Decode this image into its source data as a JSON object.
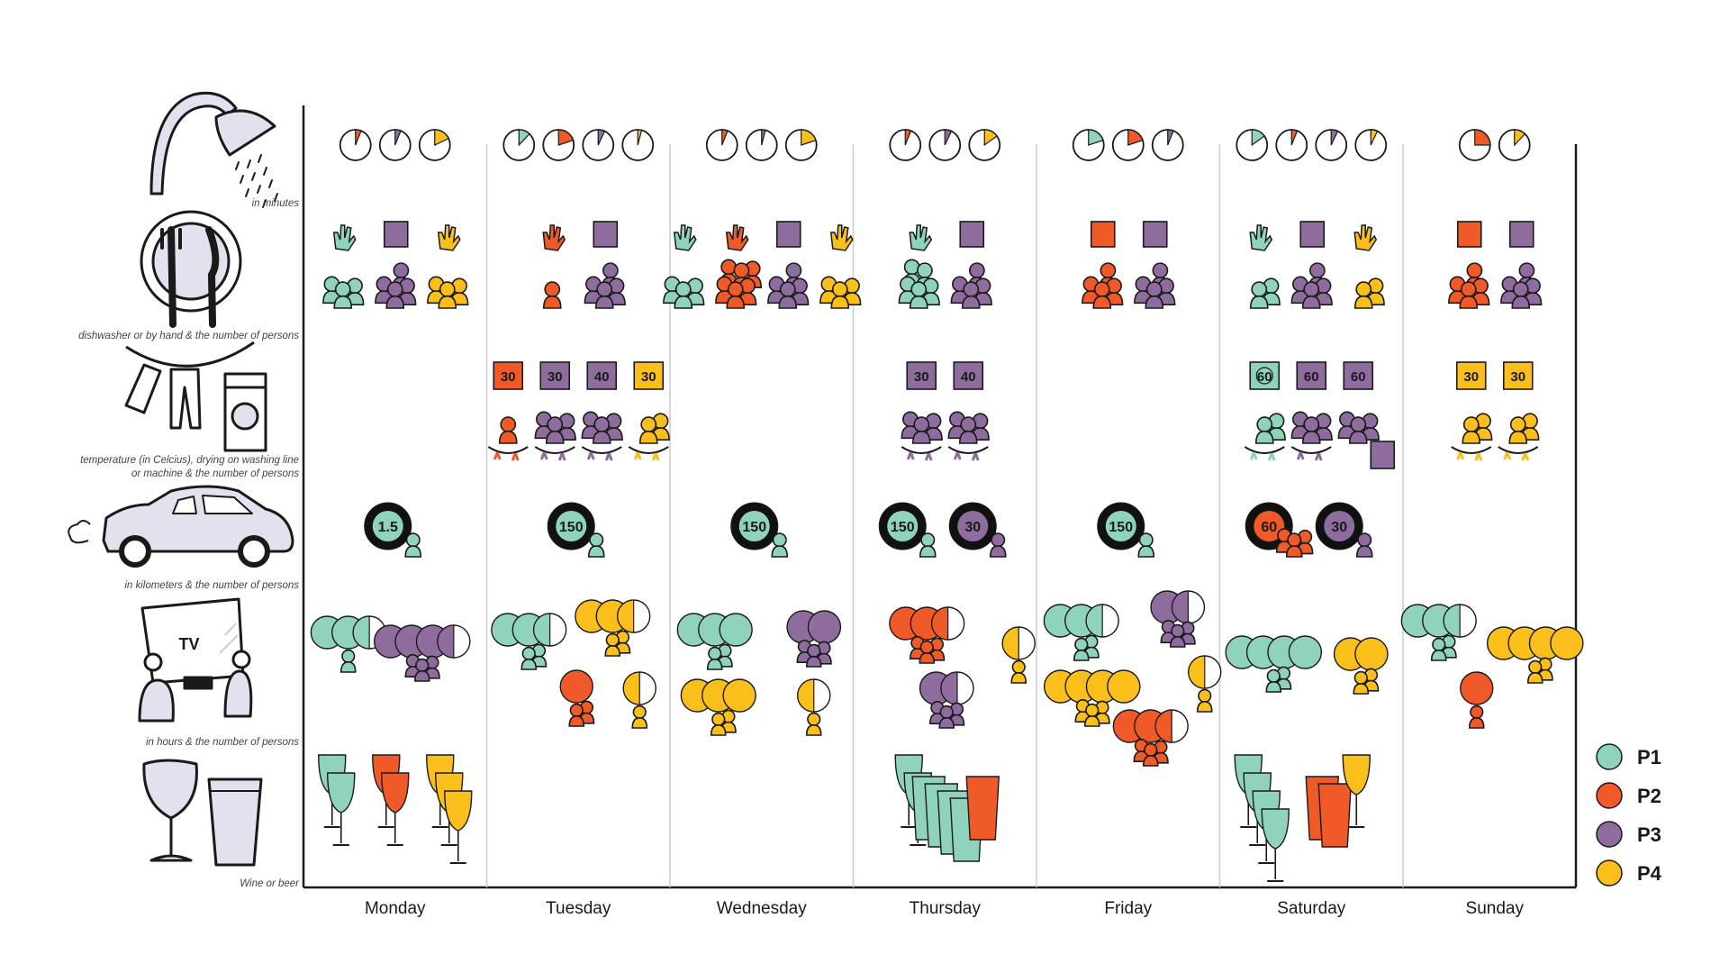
{
  "days": [
    "Monday",
    "Tuesday",
    "Wednesday",
    "Thursday",
    "Friday",
    "Saturday",
    "Sunday"
  ],
  "row_labels": {
    "shower": "in minutes",
    "dishes": "dishwasher or by hand & the number of persons",
    "laundry_1": "temperature (in Celcius), drying on washing line",
    "laundry_2": "or machine & the number of persons",
    "car": "in kilometers & the number of persons",
    "tv": "in hours & the number of persons",
    "drinks": "Wine or beer",
    "tv_screen": "TV"
  },
  "legend": [
    {
      "label": "P1",
      "color": "#8fd3bd"
    },
    {
      "label": "P2",
      "color": "#f05a28"
    },
    {
      "label": "P3",
      "color": "#8e6c9e"
    },
    {
      "label": "P4",
      "color": "#fbbf1c"
    }
  ],
  "colors": {
    "P1": "#8fd3bd",
    "P2": "#f05a28",
    "P3": "#8e6c9e",
    "P4": "#fbbf1c",
    "line": "#1a1a1a",
    "divider": "#cccccc"
  },
  "shower": [
    [
      {
        "p": "P2",
        "frac": 0.06
      },
      {
        "p": "P3",
        "frac": 0.06
      },
      {
        "p": "P4",
        "frac": 0.18
      }
    ],
    [
      {
        "p": "P1",
        "frac": 0.12
      },
      {
        "p": "P2",
        "frac": 0.2
      },
      {
        "p": "P3",
        "frac": 0.07
      },
      {
        "p": "P4",
        "frac": 0.04
      }
    ],
    [
      {
        "p": "P2",
        "frac": 0.06
      },
      {
        "p": "P3",
        "frac": 0.04
      },
      {
        "p": "P4",
        "frac": 0.2
      }
    ],
    [
      {
        "p": "P2",
        "frac": 0.06
      },
      {
        "p": "P3",
        "frac": 0.07
      },
      {
        "p": "P4",
        "frac": 0.15
      }
    ],
    [
      {
        "p": "P1",
        "frac": 0.2
      },
      {
        "p": "P2",
        "frac": 0.2
      },
      {
        "p": "P3",
        "frac": 0.06
      }
    ],
    [
      {
        "p": "P1",
        "frac": 0.15
      },
      {
        "p": "P2",
        "frac": 0.06
      },
      {
        "p": "P3",
        "frac": 0.07
      },
      {
        "p": "P4",
        "frac": 0.07
      }
    ],
    [
      {
        "p": "P2",
        "frac": 0.25
      },
      {
        "p": "P4",
        "frac": 0.12
      }
    ]
  ],
  "dishes": [
    [
      {
        "p": "P1",
        "method": "hand",
        "persons": 3
      },
      {
        "p": "P3",
        "method": "dishwasher",
        "persons": 4
      },
      {
        "p": "P4",
        "method": "hand",
        "persons": 3
      }
    ],
    [
      {
        "p": "P2",
        "method": "hand",
        "persons": 1
      },
      {
        "p": "P3",
        "method": "dishwasher",
        "persons": 4
      }
    ],
    [
      {
        "p": "P1",
        "method": "hand",
        "persons": 3
      },
      {
        "p": "P2",
        "method": "hand",
        "persons": 6
      },
      {
        "p": "P3",
        "method": "dishwasher",
        "persons": 4
      },
      {
        "p": "P4",
        "method": "hand",
        "persons": 3
      }
    ],
    [
      {
        "p": "P1",
        "method": "hand",
        "persons": 5
      },
      {
        "p": "P3",
        "method": "dishwasher",
        "persons": 4
      }
    ],
    [
      {
        "p": "P2",
        "method": "dishwasher",
        "persons": 4
      },
      {
        "p": "P3",
        "method": "dishwasher",
        "persons": 4
      }
    ],
    [
      {
        "p": "P1",
        "method": "hand",
        "persons": 2
      },
      {
        "p": "P3",
        "method": "dishwasher",
        "persons": 4
      },
      {
        "p": "P4",
        "method": "hand",
        "persons": 2
      }
    ],
    [
      {
        "p": "P2",
        "method": "dishwasher",
        "persons": 4
      },
      {
        "p": "P3",
        "method": "dishwasher",
        "persons": 4
      }
    ]
  ],
  "laundry": [
    [],
    [
      {
        "p": "P2",
        "temp": "30",
        "drying": "line",
        "persons": 1
      },
      {
        "p": "P3",
        "temp": "30",
        "drying": "line",
        "persons": 3
      },
      {
        "p": "P3",
        "temp": "40",
        "drying": "line",
        "persons": 3
      },
      {
        "p": "P4",
        "temp": "30",
        "drying": "line",
        "persons": 2
      }
    ],
    [],
    [
      {
        "p": "P3",
        "temp": "30",
        "drying": "line",
        "persons": 3
      },
      {
        "p": "P3",
        "temp": "40",
        "drying": "line",
        "persons": 3
      }
    ],
    [],
    [
      {
        "p": "P1",
        "temp": "60",
        "drying": "line",
        "persons": 2
      },
      {
        "p": "P3",
        "temp": "60",
        "drying": "line",
        "persons": 3
      },
      {
        "p": "P3",
        "temp": "60",
        "drying": "machine",
        "persons": 3
      }
    ],
    [
      {
        "p": "P4",
        "temp": "30",
        "drying": "line",
        "persons": 2
      },
      {
        "p": "P4",
        "temp": "30",
        "drying": "line",
        "persons": 2
      }
    ]
  ],
  "car": [
    [
      {
        "p": "P1",
        "km": "1.5",
        "persons": 1
      }
    ],
    [
      {
        "p": "P1",
        "km": "150",
        "persons": 1
      }
    ],
    [
      {
        "p": "P1",
        "km": "150",
        "persons": 1
      }
    ],
    [
      {
        "p": "P1",
        "km": "150",
        "persons": 1
      },
      {
        "p": "P3",
        "km": "30",
        "persons": 1
      }
    ],
    [
      {
        "p": "P1",
        "km": "150",
        "persons": 1
      }
    ],
    [
      {
        "p": "P2",
        "km": "60",
        "persons": 3
      },
      {
        "p": "P3",
        "km": "30",
        "persons": 1
      }
    ],
    []
  ],
  "tv": [
    [
      {
        "p": "P1",
        "hours": 2.5,
        "persons": 1
      },
      {
        "p": "P3",
        "hours": 3.5,
        "persons": 3
      }
    ],
    [
      {
        "p": "P1",
        "hours": 2.5,
        "persons": 2
      },
      {
        "p": "P4",
        "hours": 2.5,
        "persons": 2
      },
      {
        "p": "P2",
        "hours": 1,
        "persons": 2
      },
      {
        "p": "P4",
        "hours": 0.5,
        "persons": 1
      }
    ],
    [
      {
        "p": "P1",
        "hours": 3,
        "persons": 2
      },
      {
        "p": "P3",
        "hours": 2,
        "persons": 3
      },
      {
        "p": "P4",
        "hours": 3,
        "persons": 2
      },
      {
        "p": "P4",
        "hours": 0.5,
        "persons": 1
      }
    ],
    [
      {
        "p": "P2",
        "hours": 2.5,
        "persons": 3
      },
      {
        "p": "P4",
        "hours": 0.5,
        "persons": 1
      },
      {
        "p": "P3",
        "hours": 1.5,
        "persons": 3
      }
    ],
    [
      {
        "p": "P1",
        "hours": 2.5,
        "persons": 2
      },
      {
        "p": "P3",
        "hours": 1.5,
        "persons": 3
      },
      {
        "p": "P4",
        "hours": 4,
        "persons": 3
      },
      {
        "p": "P4",
        "hours": 0.5,
        "persons": 1
      },
      {
        "p": "P2",
        "hours": 2.5,
        "persons": 3
      }
    ],
    [
      {
        "p": "P1",
        "hours": 4,
        "persons": 2
      },
      {
        "p": "P4",
        "hours": 2,
        "persons": 2
      }
    ],
    [
      {
        "p": "P1",
        "hours": 2.5,
        "persons": 2
      },
      {
        "p": "P2",
        "hours": 1,
        "persons": 1
      },
      {
        "p": "P4",
        "hours": 4,
        "persons": 2
      }
    ]
  ],
  "drinks": [
    [
      {
        "p": "P1",
        "wine": 2,
        "beer": 0
      },
      {
        "p": "P2",
        "wine": 2,
        "beer": 0
      },
      {
        "p": "P4",
        "wine": 3,
        "beer": 0
      }
    ],
    [],
    [],
    [
      {
        "p": "P1",
        "wine": 2,
        "beer": 4
      },
      {
        "p": "P2",
        "wine": 0,
        "beer": 1
      }
    ],
    [],
    [
      {
        "p": "P1",
        "wine": 4,
        "beer": 0
      },
      {
        "p": "P2",
        "wine": 0,
        "beer": 2
      },
      {
        "p": "P4",
        "wine": 1,
        "beer": 0
      }
    ],
    []
  ]
}
